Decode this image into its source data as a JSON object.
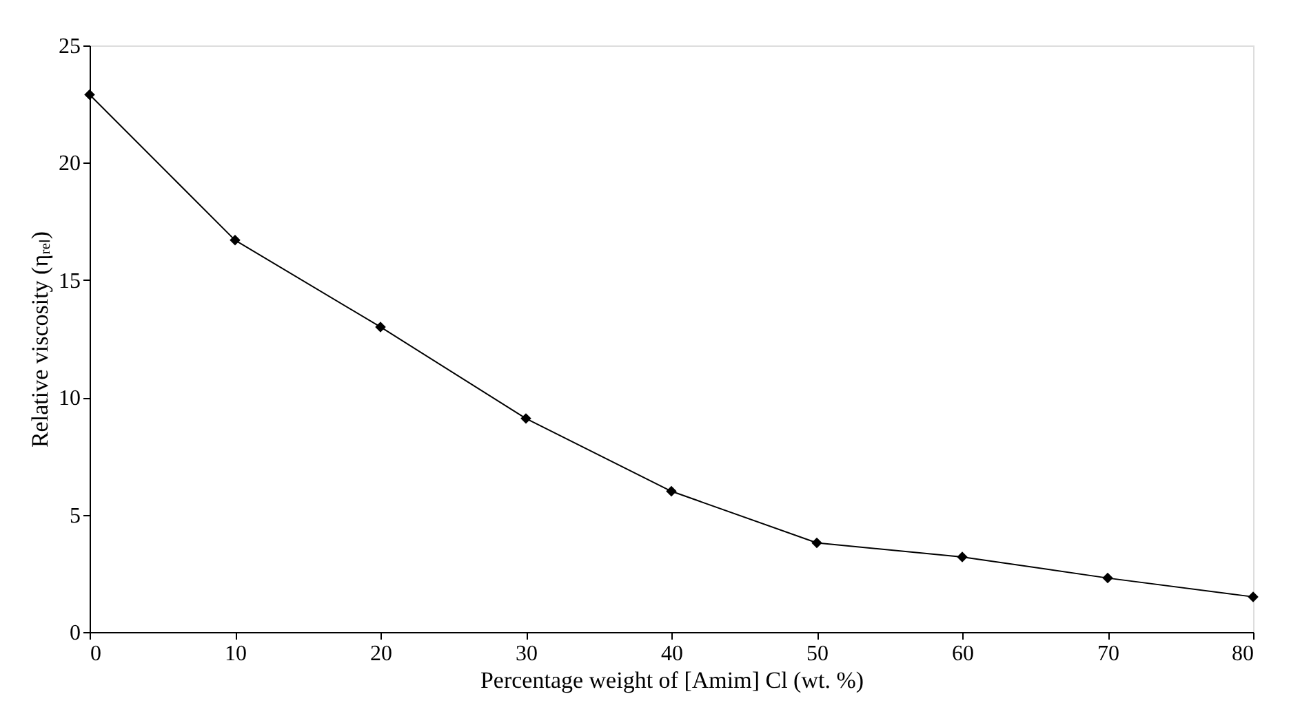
{
  "chart_data": {
    "type": "line",
    "xlabel": "Percentage weight of [Amim] Cl (wt. %)",
    "ylabel": "Relative viscosity (ηᵣₑₗ)",
    "x": [
      0,
      10,
      20,
      30,
      40,
      50,
      60,
      70,
      80
    ],
    "series": [
      {
        "color": "#000000",
        "values": [
          22.9,
          16.7,
          13.0,
          9.1,
          6.0,
          3.8,
          3.2,
          2.3,
          1.5
        ]
      }
    ],
    "xlim": [
      0,
      80
    ],
    "xticks": [
      0,
      10,
      20,
      30,
      40,
      50,
      60,
      70,
      80
    ],
    "ylim": [
      0,
      25
    ],
    "yticks": [
      0,
      5,
      10,
      15,
      20,
      25
    ],
    "grid": false,
    "marker": "diamond",
    "line_style": "solid"
  }
}
